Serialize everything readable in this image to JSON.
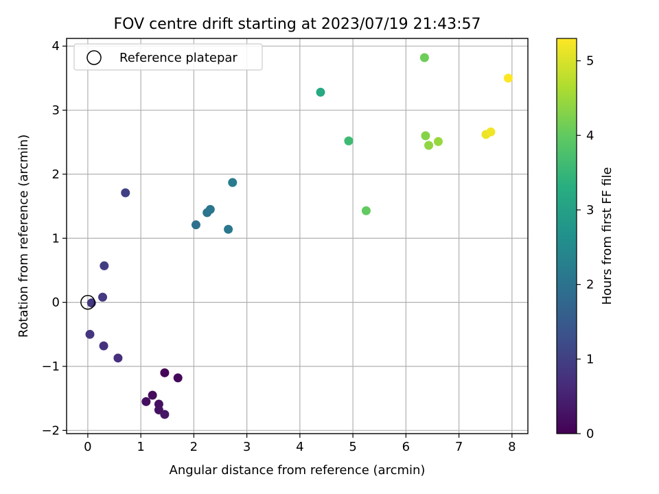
{
  "chart_data": {
    "type": "scatter",
    "title": "FOV centre drift starting at 2023/07/19 21:43:57",
    "xlabel": "Angular distance from reference (arcmin)",
    "ylabel": "Rotation from reference (arcmin)",
    "xlim": [
      -0.4,
      8.3
    ],
    "ylim": [
      -2.05,
      4.12
    ],
    "xticks": [
      0,
      1,
      2,
      3,
      4,
      5,
      6,
      7,
      8
    ],
    "yticks": [
      -2,
      -1,
      0,
      1,
      2,
      3,
      4
    ],
    "xtick_labels": [
      "0",
      "1",
      "2",
      "3",
      "4",
      "5",
      "6",
      "7",
      "8"
    ],
    "ytick_labels": [
      "−2",
      "−1",
      "0",
      "1",
      "2",
      "3",
      "4"
    ],
    "grid": true,
    "legend": {
      "location": "upper-left",
      "label": "Reference platepar",
      "marker": "open-circle"
    },
    "reference_point": {
      "x": 0,
      "y": 0
    },
    "colormap": "viridis",
    "colorbar": {
      "label": "Hours from first FF file",
      "range": [
        0,
        5.3
      ],
      "ticks": [
        0,
        1,
        2,
        3,
        4,
        5
      ],
      "tick_labels": [
        "0",
        "1",
        "2",
        "3",
        "4",
        "5"
      ]
    },
    "points": [
      {
        "x": 1.45,
        "y": -1.1,
        "hours": 0.05
      },
      {
        "x": 1.7,
        "y": -1.18,
        "hours": 0.1
      },
      {
        "x": 1.22,
        "y": -1.45,
        "hours": 0.15
      },
      {
        "x": 1.1,
        "y": -1.55,
        "hours": 0.2
      },
      {
        "x": 1.34,
        "y": -1.59,
        "hours": 0.22
      },
      {
        "x": 1.34,
        "y": -1.68,
        "hours": 0.25
      },
      {
        "x": 1.45,
        "y": -1.75,
        "hours": 0.3
      },
      {
        "x": 0.57,
        "y": -0.87,
        "hours": 0.7
      },
      {
        "x": 0.3,
        "y": -0.68,
        "hours": 0.75
      },
      {
        "x": 0.04,
        "y": -0.5,
        "hours": 0.8
      },
      {
        "x": 0.07,
        "y": -0.01,
        "hours": 0.85
      },
      {
        "x": 0.28,
        "y": 0.08,
        "hours": 0.9
      },
      {
        "x": 0.31,
        "y": 0.57,
        "hours": 0.95
      },
      {
        "x": 0.71,
        "y": 1.71,
        "hours": 1.0
      },
      {
        "x": 2.04,
        "y": 1.21,
        "hours": 1.95
      },
      {
        "x": 2.25,
        "y": 1.4,
        "hours": 2.0
      },
      {
        "x": 2.31,
        "y": 1.45,
        "hours": 2.05
      },
      {
        "x": 2.65,
        "y": 1.14,
        "hours": 2.1
      },
      {
        "x": 2.73,
        "y": 1.87,
        "hours": 2.2
      },
      {
        "x": 4.39,
        "y": 3.28,
        "hours": 3.2
      },
      {
        "x": 4.92,
        "y": 2.52,
        "hours": 3.6
      },
      {
        "x": 5.25,
        "y": 1.43,
        "hours": 4.0
      },
      {
        "x": 6.35,
        "y": 3.82,
        "hours": 4.1
      },
      {
        "x": 6.37,
        "y": 2.6,
        "hours": 4.3
      },
      {
        "x": 6.43,
        "y": 2.45,
        "hours": 4.4
      },
      {
        "x": 6.61,
        "y": 2.51,
        "hours": 4.45
      },
      {
        "x": 7.51,
        "y": 2.62,
        "hours": 5.15
      },
      {
        "x": 7.6,
        "y": 2.66,
        "hours": 5.2
      },
      {
        "x": 7.93,
        "y": 3.5,
        "hours": 5.3
      }
    ]
  }
}
